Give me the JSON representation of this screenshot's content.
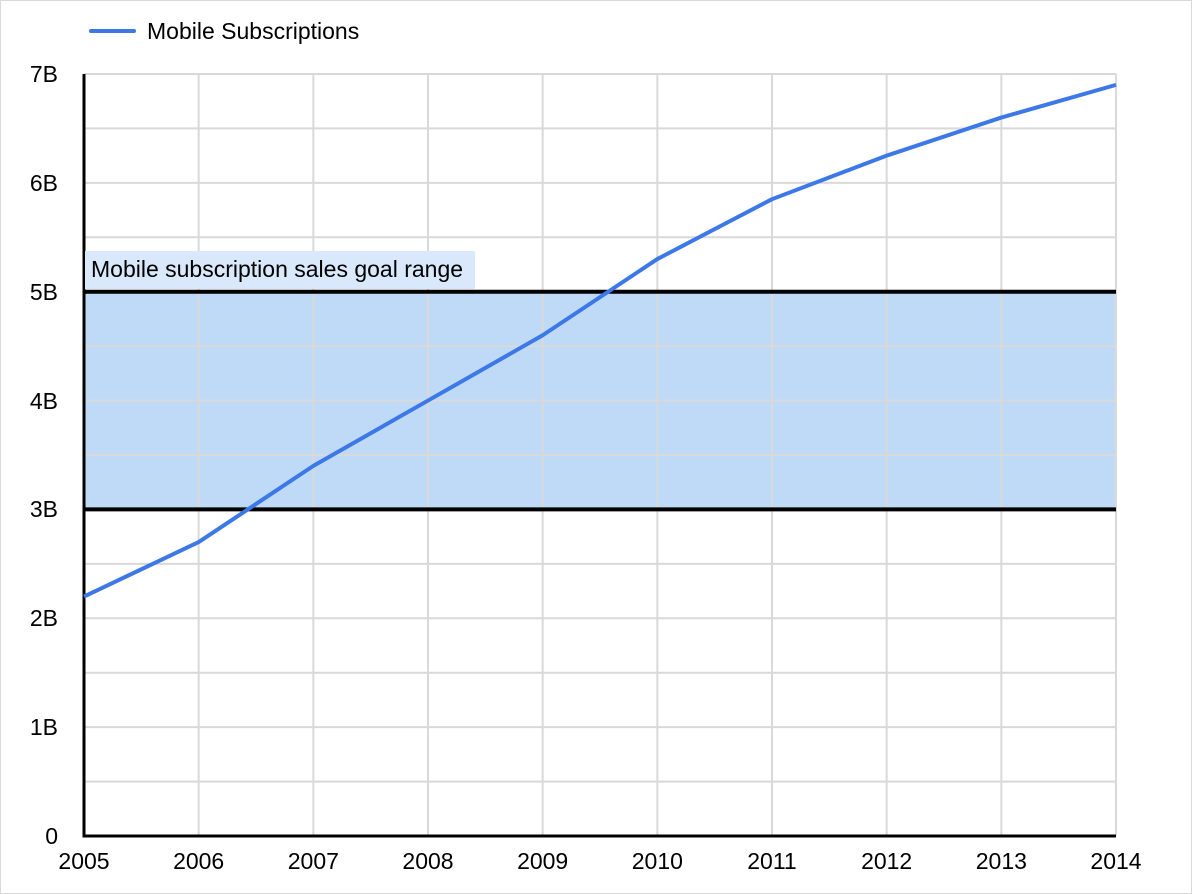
{
  "legend": {
    "label": "Mobile Subscriptions"
  },
  "colors": {
    "line": "#3c78e7",
    "band_fill": "#bedaf7",
    "band_label_bg": "#d9e8fb",
    "band_border": "#000000",
    "gridline": "#d9d9d9",
    "axis": "#000000",
    "text": "#000000",
    "chart_border": "#d9d9d9",
    "background": "#ffffff"
  },
  "chart_data": {
    "type": "line",
    "title": "",
    "xlabel": "",
    "ylabel": "",
    "x": [
      2005,
      2006,
      2007,
      2008,
      2009,
      2010,
      2011,
      2012,
      2013,
      2014
    ],
    "x_tick_labels": [
      "2005",
      "2006",
      "2007",
      "2008",
      "2009",
      "2010",
      "2011",
      "2012",
      "2013",
      "2014"
    ],
    "y_tick_labels": [
      "0",
      "1B",
      "2B",
      "3B",
      "4B",
      "5B",
      "6B",
      "7B"
    ],
    "ylim": [
      0,
      7
    ],
    "minor_horizontal_grid_step": 0.5,
    "grid": true,
    "legend_position": "top-left",
    "series": [
      {
        "name": "Mobile Subscriptions",
        "values": [
          2.2,
          2.7,
          3.4,
          4.0,
          4.6,
          5.3,
          5.85,
          6.25,
          6.6,
          6.9
        ]
      }
    ],
    "goal_band": {
      "from": 3,
      "to": 5,
      "label": "Mobile subscription sales goal range"
    }
  }
}
